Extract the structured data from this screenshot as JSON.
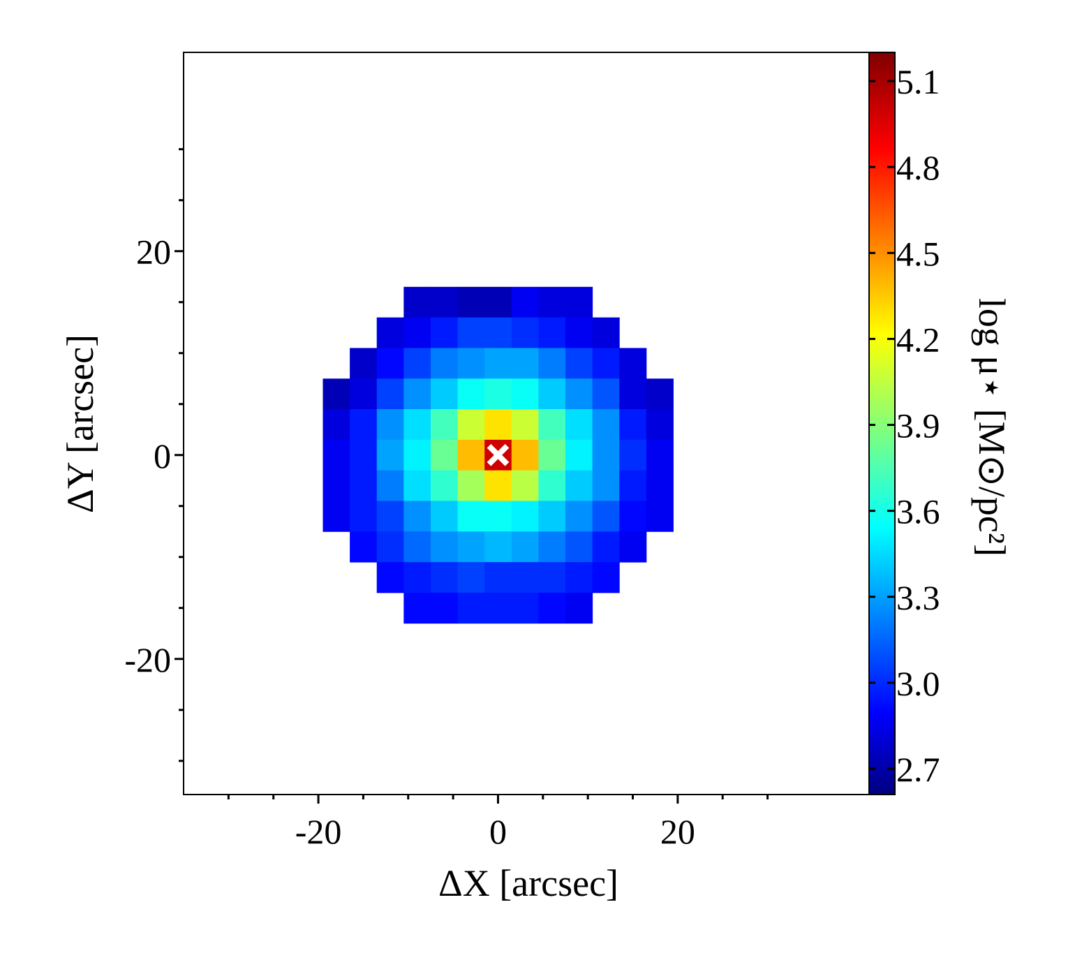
{
  "chart_data": {
    "type": "heatmap",
    "xlabel": "ΔX [arcsec]",
    "ylabel": "ΔY [arcsec]",
    "colorbar_label": "log μ⋆ [M⊙/pc²]",
    "colormap": "jet",
    "xlim": [
      -35,
      41.3
    ],
    "ylim": [
      -33.3,
      39.5
    ],
    "xticks": [
      -20,
      0,
      20
    ],
    "yticks": [
      -20,
      0,
      20
    ],
    "xminorticks": [
      -30,
      -25,
      -15,
      -10,
      -5,
      5,
      10,
      15,
      25,
      30
    ],
    "yminorticks": [
      -30,
      -25,
      -15,
      -10,
      -5,
      5,
      10,
      15,
      25,
      30
    ],
    "clim": [
      2.61,
      5.2
    ],
    "cticks": [
      2.7,
      {
        "value": 3,
        "label": "3.0"
      },
      3.3,
      3.6,
      3.9,
      4.2,
      4.5,
      4.8,
      5.1
    ],
    "x": [
      -18,
      -15,
      -12,
      -9,
      -6,
      -3,
      0,
      3,
      6,
      9,
      12,
      15,
      18
    ],
    "y": [
      15,
      12,
      9,
      6,
      3,
      0,
      -3,
      -6,
      -9,
      -12,
      -15
    ],
    "z": [
      [
        null,
        null,
        null,
        2.8,
        2.8,
        2.75,
        2.75,
        2.9,
        2.85,
        2.85,
        null,
        null,
        null
      ],
      [
        null,
        null,
        2.85,
        2.9,
        3.0,
        3.1,
        3.1,
        3.05,
        3.0,
        2.9,
        2.85,
        null,
        null
      ],
      [
        null,
        2.8,
        2.95,
        3.1,
        3.25,
        3.3,
        3.35,
        3.35,
        3.25,
        3.1,
        3.0,
        2.85,
        null
      ],
      [
        2.75,
        2.85,
        3.1,
        3.3,
        3.45,
        3.6,
        3.65,
        3.6,
        3.45,
        3.3,
        3.15,
        2.85,
        2.8
      ],
      [
        2.85,
        3.0,
        3.3,
        3.5,
        3.75,
        4.1,
        4.3,
        4.1,
        3.75,
        3.5,
        3.3,
        3.0,
        2.85
      ],
      [
        2.9,
        3.0,
        3.35,
        3.55,
        3.85,
        4.4,
        5.0,
        4.4,
        3.85,
        3.55,
        3.3,
        3.05,
        2.9
      ],
      [
        2.9,
        3.0,
        3.25,
        3.5,
        3.7,
        4.0,
        4.3,
        4.05,
        3.7,
        3.45,
        3.3,
        3.0,
        2.9
      ],
      [
        2.9,
        3.0,
        3.1,
        3.3,
        3.45,
        3.6,
        3.6,
        3.55,
        3.45,
        3.3,
        3.15,
        2.95,
        2.9
      ],
      [
        null,
        2.95,
        3.05,
        3.2,
        3.3,
        3.35,
        3.4,
        3.35,
        3.25,
        3.15,
        3.0,
        2.9,
        null
      ],
      [
        null,
        null,
        2.95,
        3.0,
        3.05,
        3.1,
        3.05,
        3.05,
        3.05,
        3.0,
        2.95,
        null,
        null
      ],
      [
        null,
        null,
        null,
        2.95,
        2.95,
        3.0,
        3.0,
        3.0,
        2.95,
        2.9,
        null,
        null,
        null
      ]
    ],
    "markers": {
      "x": [
        0
      ],
      "y": [
        0
      ],
      "color": "#ffffff"
    }
  }
}
